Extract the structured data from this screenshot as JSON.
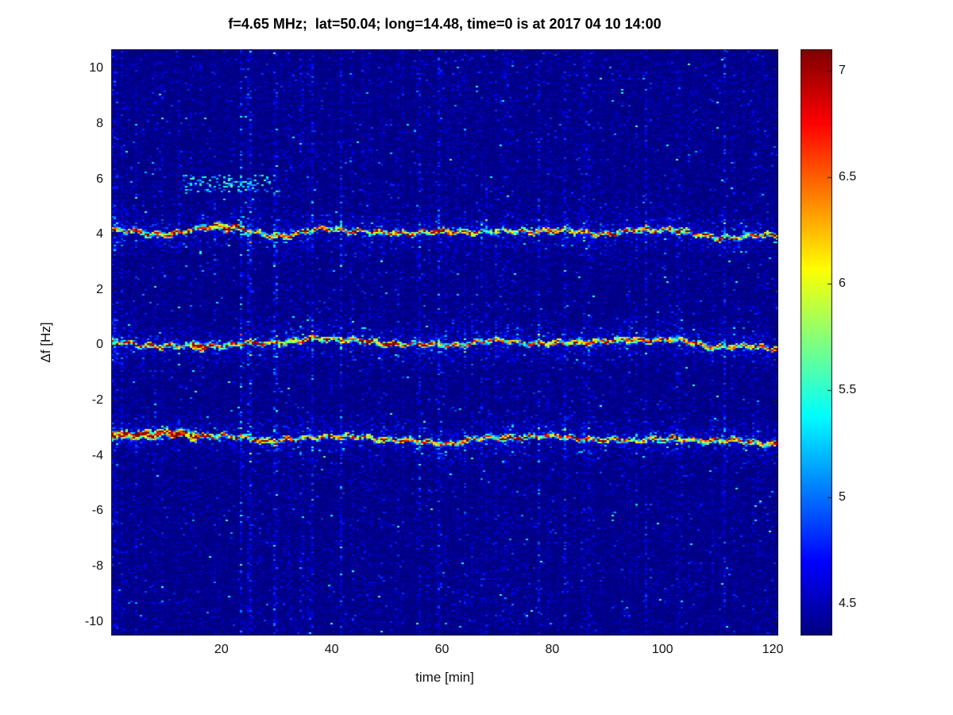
{
  "figure": {
    "background": "#ffffff",
    "axis_color": "#1a1a1a",
    "text_color": "#111111"
  },
  "chart_data": {
    "type": "heatmap",
    "title": "f=4.65 MHz;  lat=50.04; long=14.48, time=0 is at 2017 04 10 14:00",
    "xlabel": "time [min]",
    "ylabel": "Δf [Hz]",
    "xlim": [
      0,
      121
    ],
    "ylim": [
      -10.5,
      10.7
    ],
    "xtick_values": [
      20,
      40,
      60,
      80,
      100,
      120
    ],
    "xtick_labels": [
      "20",
      "40",
      "60",
      "80",
      "100",
      "120"
    ],
    "ytick_values": [
      -10,
      -8,
      -6,
      -4,
      -2,
      0,
      2,
      4,
      6,
      8,
      10
    ],
    "ytick_labels": [
      "-10",
      "-8",
      "-6",
      "-4",
      "-2",
      "0",
      "2",
      "4",
      "6",
      "8",
      "10"
    ],
    "colormap": "jet",
    "clim": [
      4.35,
      7.1
    ],
    "colorbar_tick_values": [
      4.5,
      5,
      5.5,
      6,
      6.5,
      7
    ],
    "colorbar_tick_labels": [
      "4.5",
      "5",
      "5.5",
      "6",
      "6.5",
      "7"
    ],
    "grid": false,
    "legend": "none",
    "noise_floor_level": 4.4,
    "sample_times_min": [
      0,
      10,
      20,
      30,
      40,
      50,
      60,
      70,
      80,
      90,
      100,
      110,
      120
    ],
    "traces": [
      {
        "name": "upper-doppler-trace",
        "peak_level": 7.0,
        "df_hz": [
          4.15,
          4.0,
          4.3,
          3.95,
          4.2,
          4.05,
          4.1,
          4.1,
          4.15,
          4.05,
          4.2,
          3.9,
          3.95
        ]
      },
      {
        "name": "center-doppler-trace",
        "peak_level": 7.0,
        "df_hz": [
          0.1,
          -0.05,
          0.0,
          0.1,
          0.25,
          0.05,
          0.0,
          0.15,
          0.05,
          0.15,
          0.2,
          -0.05,
          -0.1
        ]
      },
      {
        "name": "lower-doppler-trace",
        "peak_level": 7.0,
        "df_hz": [
          -3.25,
          -3.2,
          -3.3,
          -3.45,
          -3.3,
          -3.4,
          -3.55,
          -3.35,
          -3.3,
          -3.45,
          -3.4,
          -3.45,
          -3.55
        ]
      }
    ],
    "hotspots": [
      {
        "trace": 0,
        "t_min": 20.5,
        "halfwidth_min": 2.0
      },
      {
        "trace": 1,
        "t_min": 16.0,
        "halfwidth_min": 1.2
      },
      {
        "trace": 2,
        "t_min": 8.0,
        "halfwidth_min": 8.0
      }
    ],
    "faint_patch": {
      "df_hz": 5.85,
      "t_range_min": [
        13,
        31
      ],
      "level": 5.3
    }
  }
}
